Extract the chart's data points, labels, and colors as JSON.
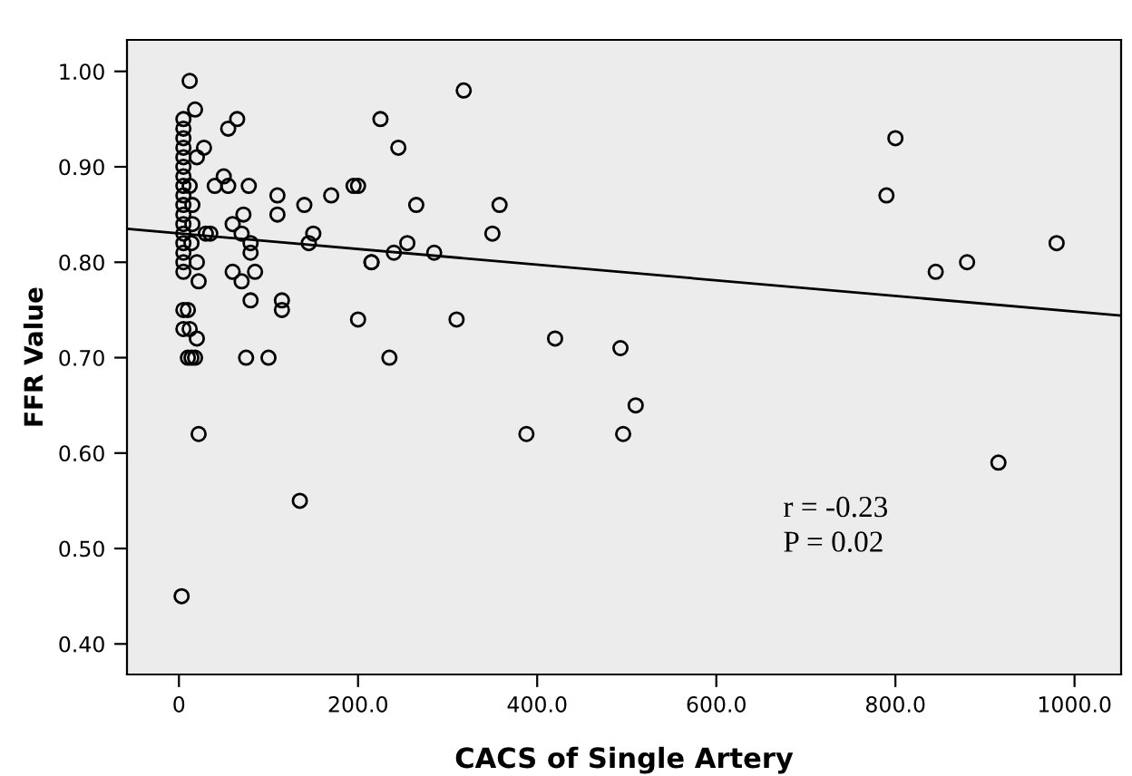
{
  "chart_data": {
    "type": "scatter",
    "xlabel": "CACS of Single Artery",
    "ylabel": "FFR Value",
    "xlim": [
      -58,
      1052
    ],
    "ylim": [
      0.368,
      1.033
    ],
    "xticks": [
      0,
      {
        "value": 200,
        "label": "200.0"
      },
      {
        "value": 400,
        "label": "400.0"
      },
      {
        "value": 600,
        "label": "600.0"
      },
      {
        "value": 800,
        "label": "800.0"
      },
      {
        "value": 1000,
        "label": "1000.0"
      }
    ],
    "yticks": [
      {
        "value": 0.4,
        "label": "0.40"
      },
      {
        "value": 0.5,
        "label": "0.50"
      },
      {
        "value": 0.6,
        "label": "0.60"
      },
      {
        "value": 0.7,
        "label": "0.70"
      },
      {
        "value": 0.8,
        "label": "0.80"
      },
      {
        "value": 0.9,
        "label": "0.90"
      },
      {
        "value": 1.0,
        "label": "1.00"
      }
    ],
    "grid": false,
    "legend": false,
    "marker": "circle",
    "annotations": [
      "r = -0.23",
      "P = 0.02"
    ],
    "series": [
      {
        "color": "#000000",
        "x": [
          3,
          5,
          5,
          10,
          12,
          10,
          14,
          18,
          20,
          22,
          12,
          18,
          5,
          5,
          5,
          5,
          5,
          5,
          5,
          5,
          5,
          5,
          5,
          5,
          5,
          5,
          5,
          5,
          5,
          12,
          15,
          15,
          14,
          20,
          22,
          20,
          28,
          30,
          35,
          40,
          50,
          55,
          60,
          60,
          65,
          70,
          70,
          55,
          72,
          75,
          78,
          80,
          80,
          80,
          85,
          100,
          110,
          110,
          115,
          115,
          135,
          140,
          145,
          150,
          170,
          195,
          200,
          200,
          215,
          215,
          225,
          235,
          240,
          245,
          255,
          265,
          285,
          310,
          318,
          350,
          358,
          388,
          420,
          493,
          496,
          510,
          790,
          800,
          845,
          880,
          915,
          980
        ],
        "values": [
          0.45,
          0.73,
          0.75,
          0.75,
          0.73,
          0.7,
          0.7,
          0.7,
          0.72,
          0.62,
          0.99,
          0.96,
          0.95,
          0.94,
          0.93,
          0.92,
          0.91,
          0.9,
          0.89,
          0.88,
          0.87,
          0.86,
          0.85,
          0.84,
          0.83,
          0.82,
          0.81,
          0.8,
          0.79,
          0.88,
          0.86,
          0.84,
          0.82,
          0.8,
          0.78,
          0.91,
          0.92,
          0.83,
          0.83,
          0.88,
          0.89,
          0.94,
          0.84,
          0.79,
          0.95,
          0.83,
          0.78,
          0.88,
          0.85,
          0.7,
          0.88,
          0.82,
          0.81,
          0.76,
          0.79,
          0.7,
          0.87,
          0.85,
          0.76,
          0.75,
          0.55,
          0.86,
          0.82,
          0.83,
          0.87,
          0.88,
          0.88,
          0.74,
          0.8,
          0.8,
          0.95,
          0.7,
          0.81,
          0.92,
          0.82,
          0.86,
          0.81,
          0.74,
          0.98,
          0.83,
          0.86,
          0.62,
          0.72,
          0.71,
          0.62,
          0.65,
          0.87,
          0.93,
          0.79,
          0.8,
          0.59,
          0.82
        ]
      },
      {
        "type": "line",
        "color": "#000000",
        "marker": "none",
        "x": [
          -58,
          1052
        ],
        "values": [
          0.835,
          0.744
        ]
      }
    ]
  }
}
